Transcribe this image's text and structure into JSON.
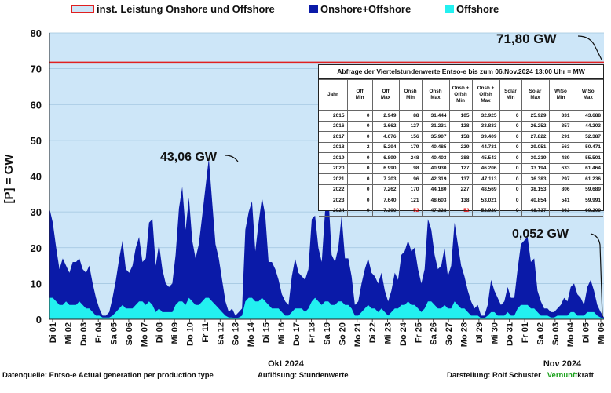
{
  "legend": {
    "capacity": "inst. Leistung Onshore und Offshore",
    "total": "Onshore+Offshore",
    "offshore": "Offshore"
  },
  "colors": {
    "plot_bg": "#cde6f8",
    "total": "#0a1aa8",
    "offshore": "#23f0f0",
    "capacity": "#e02020"
  },
  "chart_data": {
    "type": "area",
    "ylabel": "[P] = GW",
    "ylim": [
      0,
      80
    ],
    "yticks": [
      0,
      10,
      20,
      30,
      40,
      50,
      60,
      70,
      80
    ],
    "x_range_days": [
      "2024-10-01",
      "2024-11-06"
    ],
    "x_tick_labels": [
      "Di 01",
      "Mi 02",
      "Do 03",
      "Fr 04",
      "Sa 05",
      "So 06",
      "Mo 07",
      "Di 08",
      "Mi 09",
      "Do 10",
      "Fr 11",
      "Sa 12",
      "So 13",
      "Mo 14",
      "Di 15",
      "Mi 16",
      "Do 17",
      "Fr 18",
      "Sa 19",
      "So 20",
      "Mo 21",
      "Di 22",
      "Mi 23",
      "Do 24",
      "Fr 25",
      "Sa 26",
      "So 27",
      "Mo 28",
      "Di 29",
      "Mi 30",
      "Do 31",
      "Fr 01",
      "Sa 02",
      "So 03",
      "Mo 04",
      "Di 05",
      "Mi 06"
    ],
    "month_labels": [
      "Okt 2024",
      "Nov 2024"
    ],
    "capacity_gw": 71.8,
    "series": [
      {
        "name": "Onshore+Offshore",
        "values": [
          31,
          27,
          20,
          14,
          17,
          15,
          13,
          16,
          16,
          17,
          14,
          13,
          15,
          10,
          6,
          3,
          1,
          1,
          2,
          6,
          11,
          17,
          22,
          14,
          13,
          15,
          20,
          23,
          16,
          17,
          27,
          28,
          15,
          21,
          14,
          10,
          9,
          10,
          18,
          31,
          37,
          25,
          34,
          22,
          17,
          21,
          29,
          37,
          45,
          33,
          21,
          17,
          11,
          5,
          2,
          3,
          1,
          2,
          3,
          25,
          30,
          33,
          19,
          27,
          34,
          29,
          16,
          16,
          14,
          11,
          7,
          5,
          4,
          12,
          17,
          13,
          12,
          11,
          14,
          28,
          29,
          20,
          16,
          30,
          35,
          18,
          16,
          20,
          29,
          17,
          17,
          12,
          4,
          5,
          10,
          14,
          17,
          13,
          12,
          10,
          13,
          8,
          5,
          8,
          13,
          11,
          18,
          19,
          22,
          19,
          20,
          14,
          10,
          14,
          28,
          25,
          18,
          14,
          15,
          20,
          12,
          15,
          27,
          21,
          15,
          12,
          8,
          5,
          3,
          4,
          1,
          1,
          4,
          11,
          8,
          6,
          4,
          5,
          9,
          6,
          6,
          14,
          21,
          22,
          23,
          16,
          17,
          8,
          5,
          3,
          3,
          2,
          2,
          3,
          4,
          6,
          5,
          9,
          10,
          7,
          6,
          4,
          9,
          11,
          8,
          4,
          2,
          0.5
        ]
      },
      {
        "name": "Offshore",
        "values": [
          6,
          6,
          5,
          4,
          4,
          5,
          4,
          4,
          4,
          5,
          4,
          3,
          3,
          2,
          1,
          1,
          0.5,
          0.5,
          0.5,
          1,
          2,
          3,
          4,
          3,
          3,
          3,
          4,
          5,
          5,
          4,
          5,
          4,
          2,
          3,
          2,
          2,
          2,
          2,
          4,
          5,
          5,
          4,
          6,
          5,
          4,
          4,
          5,
          6,
          6,
          5,
          4,
          3,
          2,
          1,
          0.5,
          0.5,
          0.3,
          0.5,
          1,
          5,
          6,
          6,
          5,
          5,
          6,
          5,
          4,
          3,
          3,
          3,
          2,
          1,
          1,
          2,
          3,
          3,
          3,
          2,
          3,
          5,
          6,
          5,
          4,
          5,
          5,
          4,
          4,
          5,
          5,
          4,
          4,
          3,
          1,
          1,
          2,
          3,
          4,
          3,
          3,
          2,
          3,
          2,
          1,
          2,
          3,
          3,
          4,
          4,
          5,
          4,
          4,
          3,
          2,
          3,
          5,
          5,
          4,
          3,
          3,
          4,
          3,
          3,
          5,
          4,
          3,
          3,
          2,
          1,
          1,
          1,
          0.3,
          0.3,
          1,
          2,
          2,
          1,
          1,
          1,
          2,
          1,
          1,
          3,
          4,
          4,
          4,
          3,
          3,
          2,
          1,
          1,
          1,
          0.5,
          0.5,
          1,
          1,
          1,
          1,
          2,
          2,
          1,
          1,
          1,
          2,
          2,
          2,
          1,
          0.5,
          0.1
        ]
      }
    ],
    "annotations": [
      {
        "text": "71,80 GW"
      },
      {
        "text": "43,06 GW"
      },
      {
        "text": "0,052 GW"
      }
    ]
  },
  "table": {
    "title": "Abfrage der Viertelstundenwerte Entso-e bis zum 06.Nov.2024 13:00 Uhr  = MW",
    "headers": [
      [
        "Jahr"
      ],
      [
        "Off",
        "Min"
      ],
      [
        "Off",
        "Max"
      ],
      [
        "Onsh",
        "Min"
      ],
      [
        "Onsh",
        "Max"
      ],
      [
        "Onsh +",
        "Offsh",
        "Min"
      ],
      [
        "Onsh +",
        "Offsh",
        "Max"
      ],
      [
        "Solar",
        "Min"
      ],
      [
        "Solar",
        "Max"
      ],
      [
        "WiSo",
        "Min"
      ],
      [
        "WiSo",
        "Max"
      ]
    ],
    "rows": [
      [
        "2015",
        "0",
        "2.949",
        "88",
        "31.444",
        "105",
        "32.925",
        "0",
        "25.929",
        "331",
        "43.688"
      ],
      [
        "2016",
        "0",
        "3.662",
        "127",
        "31.231",
        "128",
        "33.833",
        "0",
        "26.252",
        "357",
        "44.203"
      ],
      [
        "2017",
        "0",
        "4.676",
        "156",
        "35.907",
        "158",
        "39.409",
        "0",
        "27.822",
        "291",
        "52.387"
      ],
      [
        "2018",
        "2",
        "5.294",
        "179",
        "40.485",
        "229",
        "44.731",
        "0",
        "29.051",
        "563",
        "50.471"
      ],
      [
        "2019",
        "0",
        "6.899",
        "248",
        "40.403",
        "388",
        "45.543",
        "0",
        "30.219",
        "489",
        "55.501"
      ],
      [
        "2020",
        "0",
        "6.990",
        "98",
        "40.930",
        "127",
        "46.206",
        "0",
        "33.194",
        "633",
        "61.464"
      ],
      [
        "2021",
        "0",
        "7.203",
        "96",
        "42.319",
        "137",
        "47.113",
        "0",
        "36.383",
        "297",
        "61.236"
      ],
      [
        "2022",
        "0",
        "7.262",
        "170",
        "44.180",
        "227",
        "48.569",
        "0",
        "38.153",
        "806",
        "59.689"
      ],
      [
        "2023",
        "0",
        "7.640",
        "121",
        "48.603",
        "138",
        "53.021",
        "0",
        "40.854",
        "541",
        "59.991"
      ],
      [
        "2024",
        "0",
        "7.390",
        "52",
        "47.328",
        "52",
        "52.920",
        "0",
        "48.737",
        "363",
        "69.209"
      ]
    ]
  },
  "footer": {
    "source": "Datenquelle: Entso-e  Actual generation per production type",
    "resolution": "Auflösung:  Stundenwerte",
    "author": "Darstellung:  Rolf Schuster",
    "brand_green": "Vernunft",
    "brand_black": "kraft"
  }
}
